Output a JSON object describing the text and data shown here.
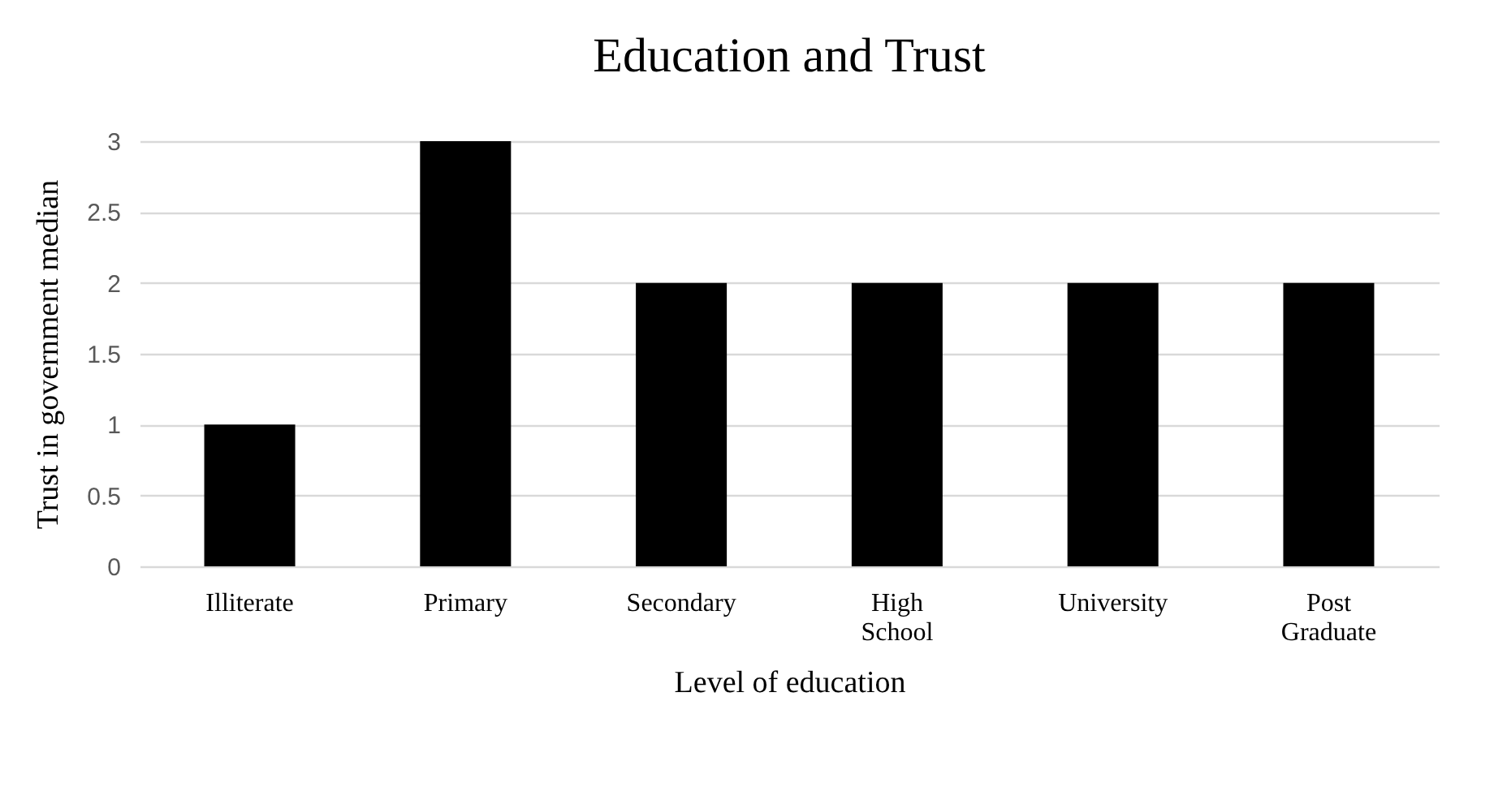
{
  "chart_data": {
    "type": "bar",
    "title": "Education and Trust",
    "xlabel": "Level of education",
    "ylabel": "Trust in government median",
    "categories": [
      "Illiterate",
      "Primary",
      "Secondary",
      "High School",
      "University",
      "Post Graduate"
    ],
    "values": [
      1,
      3,
      2,
      2,
      2,
      2
    ],
    "color": "#000000",
    "ylim": [
      0,
      3
    ],
    "yticks": [
      0,
      0.5,
      1,
      1.5,
      2,
      2.5,
      3
    ],
    "grid": "y"
  }
}
